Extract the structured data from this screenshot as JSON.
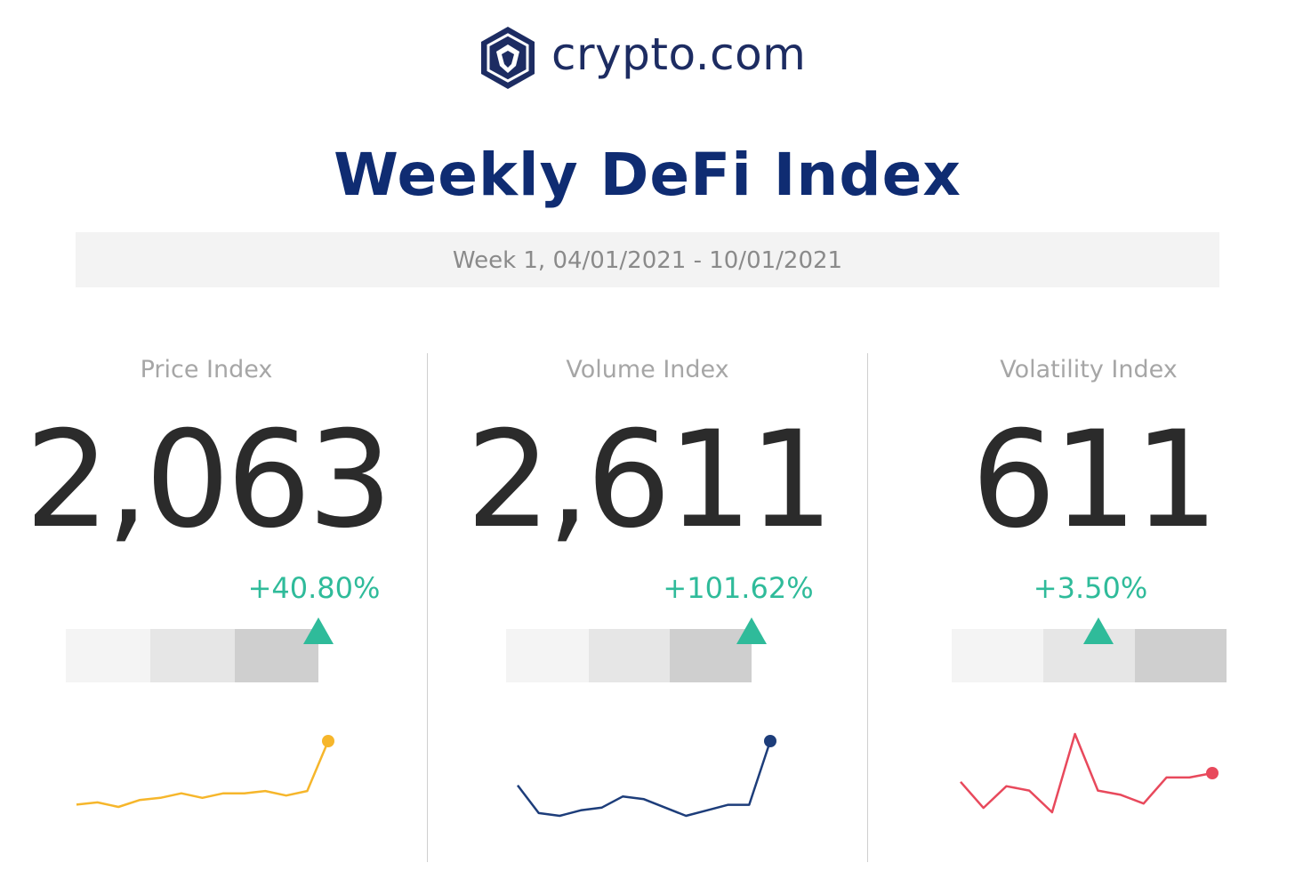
{
  "brand": {
    "name": "crypto.com",
    "color": "#1d2c62",
    "logo_icon": "crypto-com-lion-shield-icon"
  },
  "title": "Weekly DeFi Index",
  "subtitle": "Week 1, 04/01/2021 - 10/01/2021",
  "colors": {
    "up": "#2fbb9a",
    "seg_light": "#f4f4f4",
    "seg_mid": "#e6e6e6",
    "seg_dark": "#cfcfcf"
  },
  "chart_data": [
    {
      "type": "line",
      "title": "Price Index",
      "value": "2,063",
      "change": "+40.80%",
      "gauge_level": 0.92,
      "color": "#f6b62b",
      "values": [
        2,
        3,
        1,
        4,
        5,
        7,
        5,
        7,
        7,
        8,
        6,
        8,
        30
      ]
    },
    {
      "type": "line",
      "title": "Volume Index",
      "value": "2,611",
      "change": "+101.62%",
      "gauge_level": 0.9,
      "color": "#1d3d7a",
      "values": [
        12,
        2,
        1,
        3,
        4,
        8,
        7,
        4,
        1,
        3,
        5,
        5,
        28
      ]
    },
    {
      "type": "line",
      "title": "Volatility Index",
      "value": "611",
      "change": "+3.50%",
      "gauge_level": 0.58,
      "color": "#e8495c",
      "values": [
        8,
        2,
        7,
        6,
        1,
        19,
        6,
        5,
        3,
        9,
        9,
        10
      ]
    }
  ]
}
